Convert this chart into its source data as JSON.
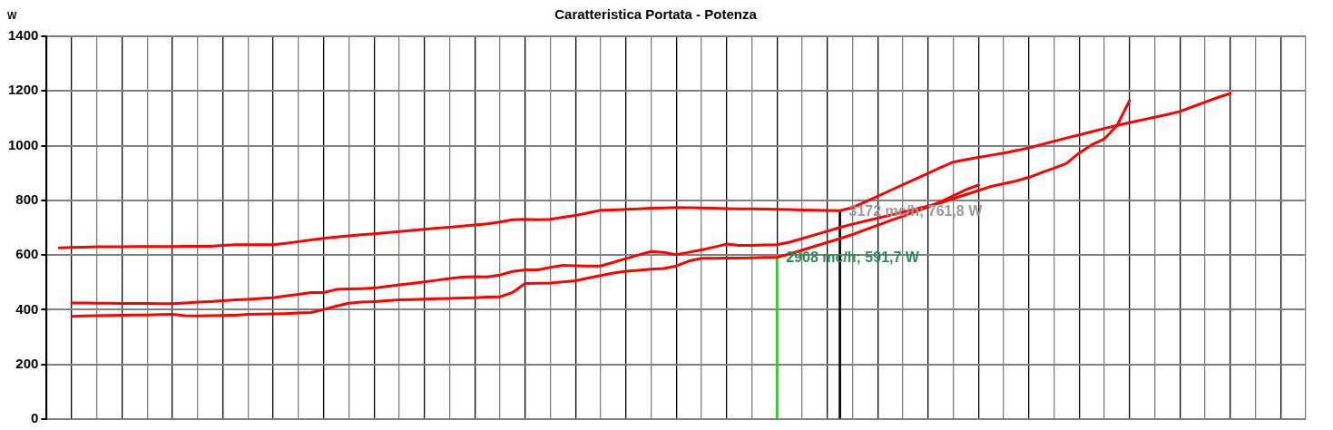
{
  "chart_data": {
    "type": "line",
    "title": "Caratteristica Portata - Potenza",
    "ylabel": "W",
    "categories": [
      null,
      null,
      null,
      null,
      null,
      null,
      null,
      null,
      null,
      null,
      null,
      null,
      null,
      null,
      null,
      null,
      null,
      null,
      null,
      null,
      null,
      null,
      null,
      null,
      null,
      null,
      null,
      null,
      null,
      null,
      null,
      null,
      null,
      null,
      null,
      null,
      null,
      null,
      null,
      null,
      null,
      null,
      null,
      null,
      null,
      null,
      null,
      null,
      null,
      null,
      null,
      null,
      null,
      null,
      null,
      null,
      null,
      null,
      null,
      null,
      null,
      null,
      null,
      null,
      null,
      null,
      null,
      null,
      null,
      null,
      null,
      null,
      null,
      null,
      null,
      null,
      null,
      null,
      null,
      null,
      null,
      null,
      null,
      null,
      null,
      null,
      null,
      null,
      null,
      null,
      null,
      null,
      null,
      null,
      null,
      null,
      null,
      null,
      null,
      null,
      null
    ],
    "ylim": [
      0,
      1400
    ],
    "yticks": [
      0,
      200,
      400,
      600,
      800,
      1000,
      1200,
      1400
    ],
    "tick_labels": "y",
    "grid": true,
    "legend": false,
    "marker": "none",
    "line_style": "solid",
    "series": [
      {
        "color": "#ff0000",
        "values": [
          null,
          626,
          628,
          629,
          630,
          630,
          630,
          631,
          631,
          631,
          631,
          632,
          632,
          632,
          635,
          638,
          638,
          638,
          638,
          643,
          649,
          655,
          661,
          666,
          670,
          674,
          678,
          682,
          686,
          690,
          694,
          698,
          702,
          706,
          710,
          714,
          721,
          729,
          731,
          729,
          731,
          738,
          745,
          754,
          764,
          765,
          767,
          769,
          771,
          772,
          774,
          773,
          772,
          771,
          770,
          769,
          769,
          768,
          767,
          766,
          765,
          764,
          763,
          762,
          774,
          794,
          815,
          836,
          857,
          878,
          899,
          920,
          940,
          949,
          957,
          965,
          973,
          982,
          992,
          1004,
          1016,
          1028,
          1039,
          1051,
          1063,
          1074,
          1084,
          1094,
          1104,
          1114,
          1125,
          1142,
          1159,
          1176,
          1191,
          null,
          null,
          null,
          null,
          null,
          null
        ]
      },
      {
        "color": "#ff0000",
        "values": [
          null,
          null,
          425,
          425,
          424,
          424,
          423,
          423,
          423,
          422,
          422,
          425,
          428,
          430,
          433,
          436,
          438,
          441,
          444,
          450,
          456,
          463,
          463,
          474,
          476,
          477,
          479,
          485,
          491,
          496,
          502,
          508,
          514,
          519,
          521,
          520,
          527,
          540,
          546,
          546,
          555,
          562,
          561,
          560,
          560,
          573,
          587,
          600,
          613,
          610,
          601,
          610,
          619,
          629,
          640,
          635,
          635,
          637,
          638,
          647,
          660,
          674,
          687,
          701,
          713,
          724,
          735,
          746,
          757,
          768,
          779,
          791,
          806,
          821,
          836,
          851,
          861,
          871,
          884,
          901,
          918,
          935,
          973,
          1003,
          1025,
          1073,
          1165,
          null,
          null,
          null,
          null,
          null,
          null,
          null,
          null,
          null,
          null,
          null,
          null,
          null,
          null
        ]
      },
      {
        "color": "#ff0000",
        "values": [
          null,
          null,
          376,
          377,
          378,
          379,
          380,
          381,
          381,
          382,
          383,
          378,
          377,
          378,
          379,
          380,
          383,
          384,
          385,
          386,
          388,
          390,
          401,
          413,
          424,
          428,
          430,
          433,
          436,
          437,
          439,
          440,
          441,
          443,
          444,
          446,
          447,
          463,
          496,
          497,
          498,
          502,
          506,
          516,
          525,
          534,
          541,
          544,
          548,
          551,
          560,
          578,
          588,
          588,
          589,
          589,
          590,
          591,
          591.7,
          604,
          618,
          632,
          646,
          660,
          675,
          692,
          709,
          726,
          742,
          759,
          776,
          795,
          817,
          839,
          856,
          null,
          null,
          null,
          null,
          null,
          null,
          null,
          null,
          null,
          null,
          null,
          null,
          null,
          null,
          null,
          null,
          null,
          null,
          null,
          null,
          null,
          null,
          null,
          null,
          null,
          null
        ]
      },
      {
        "type": "bar",
        "color": "#00ee00",
        "values": [
          null,
          null,
          null,
          null,
          null,
          null,
          null,
          null,
          null,
          null,
          null,
          null,
          null,
          null,
          null,
          null,
          null,
          null,
          null,
          null,
          null,
          null,
          null,
          null,
          null,
          null,
          null,
          null,
          null,
          null,
          null,
          null,
          null,
          null,
          null,
          null,
          null,
          null,
          null,
          null,
          null,
          null,
          null,
          null,
          null,
          null,
          null,
          null,
          null,
          null,
          null,
          null,
          null,
          null,
          null,
          null,
          null,
          null,
          591.7,
          null,
          null,
          null,
          null,
          null,
          null,
          null,
          null,
          null,
          null,
          null,
          null,
          null,
          null,
          null,
          null,
          null,
          null,
          null,
          null,
          null,
          null,
          null,
          null,
          null,
          null,
          null,
          null,
          null,
          null,
          null,
          null,
          null,
          null,
          null,
          null,
          null,
          null,
          null,
          null,
          null,
          null
        ]
      },
      {
        "type": "bar",
        "color": "#000000",
        "values": [
          null,
          null,
          null,
          null,
          null,
          null,
          null,
          null,
          null,
          null,
          null,
          null,
          null,
          null,
          null,
          null,
          null,
          null,
          null,
          null,
          null,
          null,
          null,
          null,
          null,
          null,
          null,
          null,
          null,
          null,
          null,
          null,
          null,
          null,
          null,
          null,
          null,
          null,
          null,
          null,
          null,
          null,
          null,
          null,
          null,
          null,
          null,
          null,
          null,
          null,
          null,
          null,
          null,
          null,
          null,
          null,
          null,
          null,
          null,
          null,
          null,
          null,
          null,
          761.8,
          null,
          null,
          null,
          null,
          null,
          null,
          null,
          null,
          null,
          null,
          null,
          null,
          null,
          null,
          null,
          null,
          null,
          null,
          null,
          null,
          null,
          null,
          null,
          null,
          null,
          null,
          null,
          null,
          null,
          null,
          null,
          null,
          null,
          null,
          null,
          null,
          null
        ]
      }
    ],
    "annotations": [
      "2908 mc/h; 591,7 W",
      "3172 mc/h; 761,8 W"
    ]
  }
}
